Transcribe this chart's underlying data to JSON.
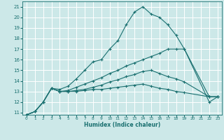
{
  "xlabel": "Humidex (Indice chaleur)",
  "bg_color": "#cce8e8",
  "grid_color": "#ffffff",
  "line_color": "#1a7070",
  "xlim": [
    -0.5,
    23.5
  ],
  "ylim": [
    10.8,
    21.5
  ],
  "xticks": [
    0,
    1,
    2,
    3,
    4,
    5,
    6,
    7,
    8,
    9,
    10,
    11,
    12,
    13,
    14,
    15,
    16,
    17,
    18,
    19,
    20,
    21,
    22,
    23
  ],
  "yticks": [
    11,
    12,
    13,
    14,
    15,
    16,
    17,
    18,
    19,
    20,
    21
  ],
  "series": [
    {
      "x": [
        0,
        1,
        2,
        3,
        4,
        5,
        6,
        7,
        8,
        9,
        10,
        11,
        12,
        13,
        14,
        15,
        16,
        17,
        18,
        19,
        22,
        23
      ],
      "y": [
        10.8,
        11.1,
        12.0,
        13.3,
        13.2,
        13.5,
        14.2,
        15.0,
        15.8,
        16.0,
        17.0,
        17.8,
        19.3,
        20.5,
        21.0,
        20.3,
        20.0,
        19.3,
        18.3,
        17.0,
        12.0,
        12.5
      ]
    },
    {
      "x": [
        0,
        1,
        2,
        3,
        4,
        5,
        6,
        7,
        8,
        9,
        10,
        11,
        12,
        13,
        14,
        15,
        16,
        17,
        18,
        19,
        22,
        23
      ],
      "y": [
        10.8,
        11.1,
        12.0,
        13.3,
        13.0,
        13.1,
        13.4,
        13.7,
        14.0,
        14.3,
        14.7,
        15.0,
        15.4,
        15.7,
        16.0,
        16.3,
        16.6,
        17.0,
        17.0,
        17.0,
        12.5,
        12.5
      ]
    },
    {
      "x": [
        0,
        1,
        2,
        3,
        4,
        5,
        6,
        7,
        8,
        9,
        10,
        11,
        12,
        13,
        14,
        15,
        16,
        17,
        18,
        19,
        22,
        23
      ],
      "y": [
        10.8,
        11.1,
        12.0,
        13.3,
        13.0,
        13.0,
        13.1,
        13.2,
        13.4,
        13.6,
        13.9,
        14.1,
        14.4,
        14.6,
        14.9,
        15.0,
        14.7,
        14.4,
        14.2,
        13.9,
        12.5,
        12.5
      ]
    },
    {
      "x": [
        0,
        1,
        2,
        3,
        4,
        5,
        6,
        7,
        8,
        9,
        10,
        11,
        12,
        13,
        14,
        15,
        16,
        17,
        18,
        19,
        22,
        23
      ],
      "y": [
        10.8,
        11.1,
        12.0,
        13.3,
        13.0,
        13.0,
        13.0,
        13.1,
        13.2,
        13.2,
        13.3,
        13.4,
        13.5,
        13.6,
        13.7,
        13.5,
        13.3,
        13.2,
        13.0,
        12.9,
        12.5,
        12.5
      ]
    }
  ]
}
